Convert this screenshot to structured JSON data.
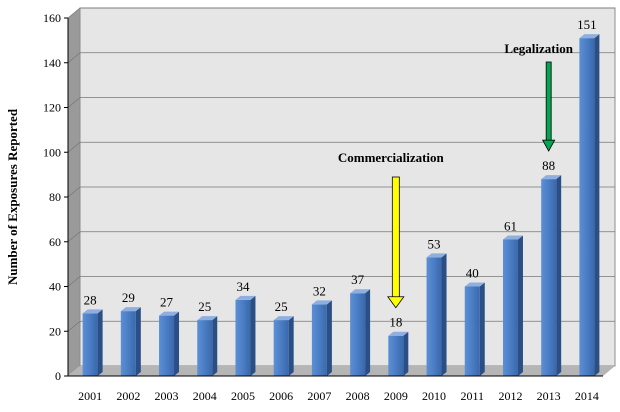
{
  "chart_data": {
    "type": "bar",
    "title": "",
    "xlabel": "",
    "ylabel": "Number of Exposures Reported",
    "categories": [
      "2001",
      "2002",
      "2003",
      "2004",
      "2005",
      "2006",
      "2007",
      "2008",
      "2009",
      "2010",
      "2011",
      "2012",
      "2013",
      "2014"
    ],
    "values": [
      28,
      29,
      27,
      25,
      34,
      25,
      32,
      37,
      18,
      53,
      40,
      61,
      88,
      151
    ],
    "value_labels": [
      "28",
      "29",
      "27",
      "25",
      "34",
      "25",
      "32",
      "37",
      "18",
      "53",
      "40",
      "61",
      "88",
      "151"
    ],
    "ylim": [
      0,
      160
    ],
    "yticks": [
      "0",
      "20",
      "40",
      "60",
      "80",
      "100",
      "120",
      "140",
      "160"
    ],
    "grid": true,
    "annotations": [
      {
        "text": "Commercialization",
        "category": "2009",
        "arrow_color": "#ffff00"
      },
      {
        "text": "Legalization",
        "category": "2013",
        "arrow_color": "#00a651"
      }
    ],
    "colors": {
      "bar": "#4a7dc4",
      "bar_side": "#2a4f86",
      "bar_top": "#8fb0de",
      "plot_bg": "#e6e6e6",
      "wall": "#9a9a9a"
    }
  }
}
